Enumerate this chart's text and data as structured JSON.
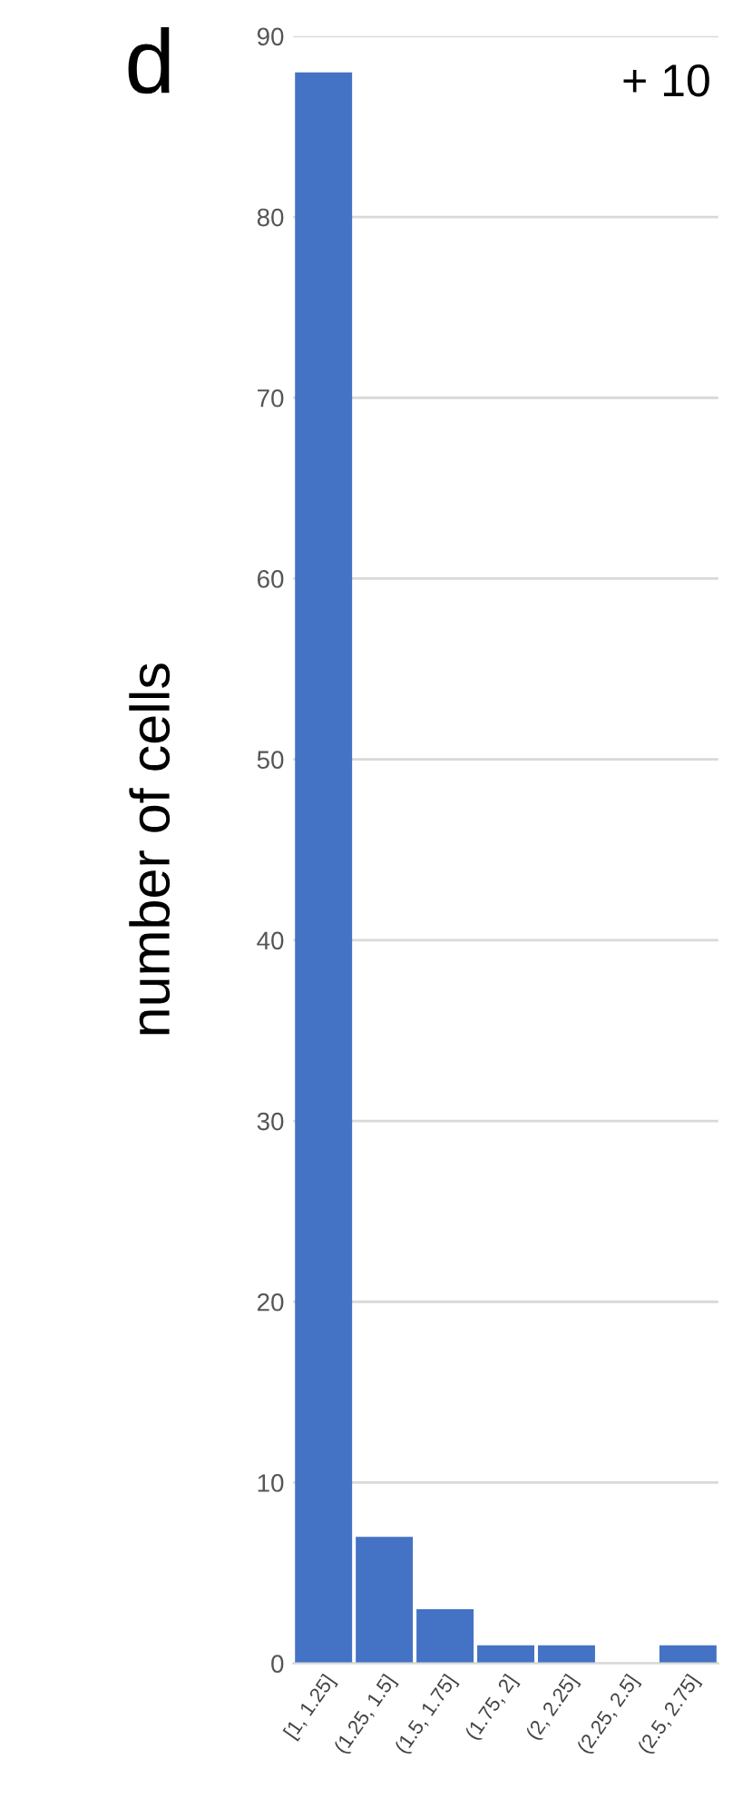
{
  "chart_data": {
    "type": "bar",
    "ylabel": "number of cells",
    "categories": [
      "[1, 1.25]",
      "(1.25, 1.5]",
      "(1.5, 1.75]",
      "(1.75, 2]",
      "(2, 2.25]",
      "(2.25, 2.5]",
      "(2.5, 2.75]"
    ],
    "values": [
      88,
      7,
      3,
      1,
      1,
      0,
      1
    ],
    "color": "#4472c4",
    "ylim": [
      0,
      90
    ],
    "yticks": [
      0,
      10,
      20,
      30,
      40,
      50,
      60,
      70,
      80,
      90
    ],
    "grid": "y",
    "annotations": [
      "d",
      "+ 10"
    ]
  }
}
